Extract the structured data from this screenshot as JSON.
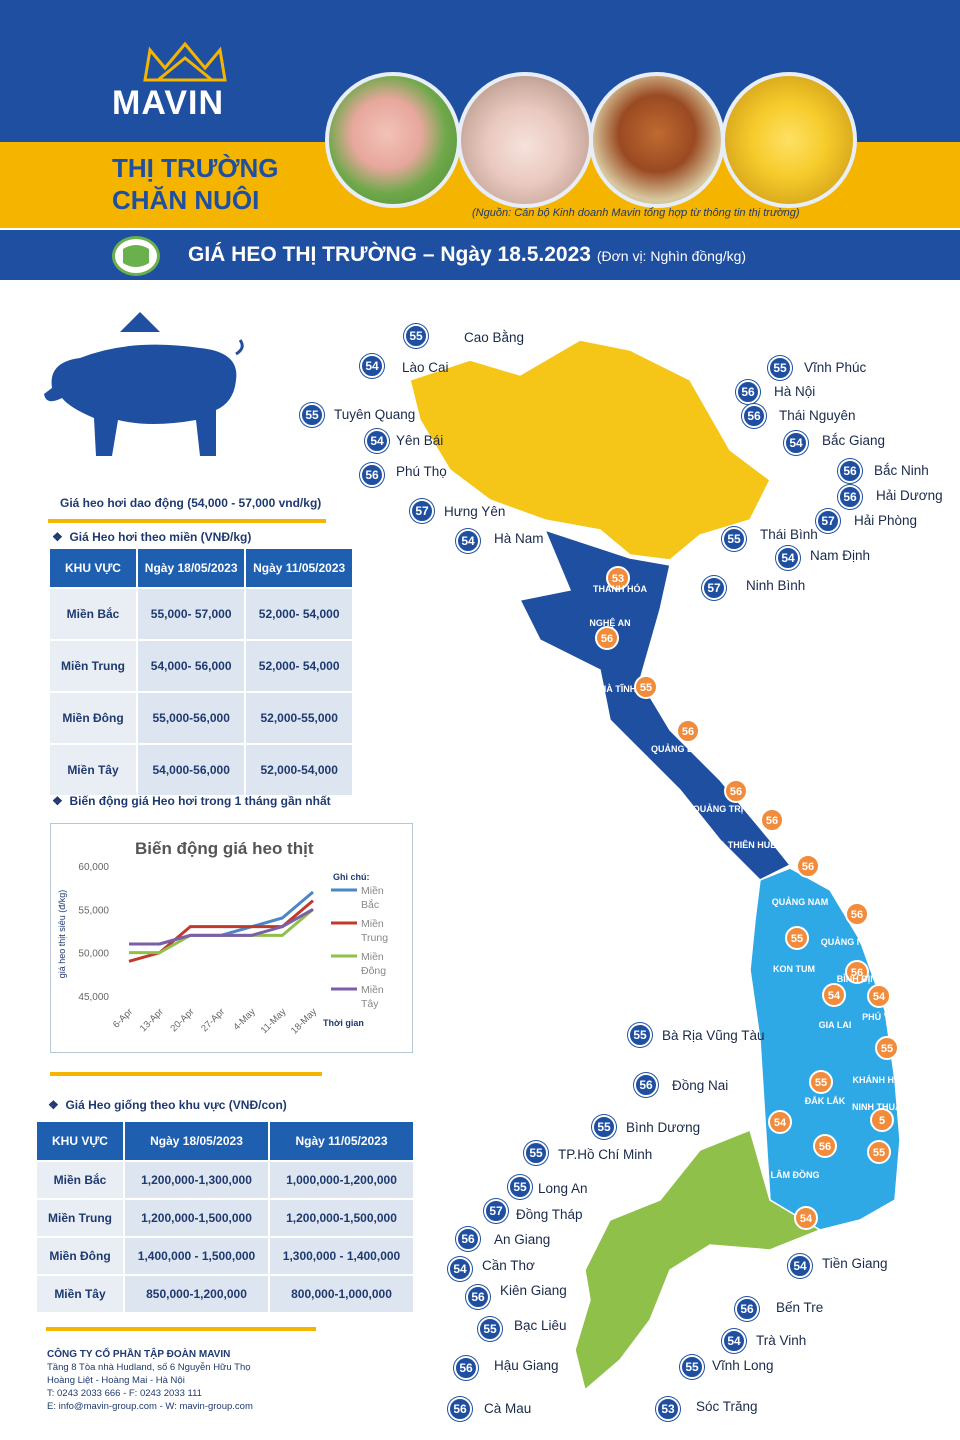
{
  "brand": {
    "name": "MAVIN",
    "subtitle_line1": "THỊ TRƯỜNG",
    "subtitle_line2": "CHĂN NUÔI"
  },
  "source_note": "(Nguồn: Cán bộ Kinh doanh Mavin tổng hợp từ thông tin thị trường)",
  "banner": {
    "title": "GIÁ HEO THỊ TRƯỜNG – Ngày 18.5.2023",
    "unit": "(Đơn vị: Nghìn đồng/kg)"
  },
  "price_range_note": "Giá heo hơi dao động (54,000 - 57,000 vnd/kg)",
  "section1": {
    "title": "Giá Heo hơi theo miền (VNĐ/kg)",
    "headers": [
      "KHU VỰC",
      "Ngày 18/05/2023",
      "Ngày 11/05/2023"
    ],
    "rows": [
      [
        "Miền Bắc",
        "55,000- 57,000",
        "52,000- 54,000"
      ],
      [
        "Miền Trung",
        "54,000- 56,000",
        "52,000- 54,000"
      ],
      [
        "Miền Đông",
        "55,000-56,000",
        "52,000-55,000"
      ],
      [
        "Miền Tây",
        "54,000-56,000",
        "52,000-54,000"
      ]
    ]
  },
  "section2": {
    "title": "Biến động giá Heo hơi trong 1 tháng gần nhất"
  },
  "chart_data": {
    "type": "line",
    "title": "Biến động giá heo thịt",
    "xlabel": "Thời gian",
    "ylabel": "giá heo thịt siêu (đ/kg)",
    "legend_title": "Ghi chú:",
    "categories": [
      "6-Apr",
      "13-Apr",
      "20-Apr",
      "27-Apr",
      "4-May",
      "11-May",
      "18-May"
    ],
    "ylim": [
      45000,
      60000
    ],
    "yticks": [
      "45,000",
      "50,000",
      "55,000",
      "60,000"
    ],
    "series": [
      {
        "name": "Miền Bắc",
        "color": "#4a86c8",
        "values": [
          51000,
          51000,
          52000,
          52000,
          53000,
          54000,
          57000
        ]
      },
      {
        "name": "Miền Trung",
        "color": "#c0392b",
        "values": [
          49000,
          50000,
          53000,
          53000,
          53000,
          53000,
          56000
        ]
      },
      {
        "name": "Miền Đông",
        "color": "#8ec04a",
        "values": [
          50000,
          50000,
          52000,
          52000,
          52000,
          52000,
          55000
        ]
      },
      {
        "name": "Miền Tây",
        "color": "#7b5ea7",
        "values": [
          51000,
          51000,
          52000,
          52000,
          52000,
          53000,
          55000
        ]
      }
    ]
  },
  "section3": {
    "title": "Giá Heo giống theo khu vực (VNĐ/con)",
    "headers": [
      "KHU VỰC",
      "Ngày 18/05/2023",
      "Ngày 11/05/2023"
    ],
    "rows": [
      [
        "Miền Bắc",
        "1,200,000-1,300,000",
        "1,000,000-1,200,000"
      ],
      [
        "Miền Trung",
        "1,200,000-1,500,000",
        "1,200,000-1,500,000"
      ],
      [
        "Miền Đông",
        "1,400,000 - 1,500,000",
        "1,300,000 - 1,400,000"
      ],
      [
        "Miền Tây",
        "850,000-1,200,000",
        "800,000-1,000,000"
      ]
    ]
  },
  "footer": {
    "company": "CÔNG TY CỔ PHẦN TẬP ĐOÀN MAVIN",
    "address1": "Tầng 8 Tòa nhà Hudland, số 6 Nguyễn Hữu Thọ",
    "address2": "Hoàng Liệt - Hoàng Mai - Hà Nội",
    "phone": "T: 0243 2033 666 - F: 0243 2033 111",
    "contact": "E: info@mavin-group.com - W: mavin-group.com"
  },
  "map_labels": [
    {
      "v": "55",
      "n": "Cao Bằng"
    },
    {
      "v": "54",
      "n": "Lào Cai"
    },
    {
      "v": "55",
      "n": "Vĩnh Phúc"
    },
    {
      "v": "56",
      "n": "Hà Nội"
    },
    {
      "v": "55",
      "n": "Tuyên Quang"
    },
    {
      "v": "56",
      "n": "Thái Nguyên"
    },
    {
      "v": "54",
      "n": "Yên Bái"
    },
    {
      "v": "54",
      "n": "Bắc Giang"
    },
    {
      "v": "56",
      "n": "Phú Thọ"
    },
    {
      "v": "56",
      "n": "Bắc Ninh"
    },
    {
      "v": "56",
      "n": "Hải Dương"
    },
    {
      "v": "57",
      "n": "Hưng Yên"
    },
    {
      "v": "57",
      "n": "Hải Phòng"
    },
    {
      "v": "54",
      "n": "Hà Nam"
    },
    {
      "v": "55",
      "n": "Thái Bình"
    },
    {
      "v": "54",
      "n": "Nam Định"
    },
    {
      "v": "57",
      "n": "Ninh Bình"
    },
    {
      "v": "55",
      "n": "Bà Rịa Vũng Tàu"
    },
    {
      "v": "56",
      "n": "Đồng Nai"
    },
    {
      "v": "55",
      "n": "Bình Dương"
    },
    {
      "v": "55",
      "n": "TP.Hồ Chí Minh"
    },
    {
      "v": "55",
      "n": "Long An"
    },
    {
      "v": "57",
      "n": "Đồng Tháp"
    },
    {
      "v": "56",
      "n": "An Giang"
    },
    {
      "v": "54",
      "n": "Tiền Giang"
    },
    {
      "v": "54",
      "n": "Cần Thơ"
    },
    {
      "v": "56",
      "n": "Kiên Giang"
    },
    {
      "v": "56",
      "n": "Bến Tre"
    },
    {
      "v": "55",
      "n": "Bạc Liêu"
    },
    {
      "v": "54",
      "n": "Trà Vinh"
    },
    {
      "v": "56",
      "n": "Hậu Giang"
    },
    {
      "v": "55",
      "n": "Vĩnh Long"
    },
    {
      "v": "56",
      "n": "Cà Mau"
    },
    {
      "v": "53",
      "n": "Sóc Trăng"
    }
  ],
  "map_regions": [
    "THANH HÓA",
    "NGHỆ AN",
    "HÀ TĨNH",
    "QUẢNG BÌNH",
    "QUẢNG TRỊ",
    "THỪA THIÊN HUẾ",
    "QUẢNG NAM",
    "QUẢNG NGÃI",
    "KON TUM",
    "BÌNH ĐỊNH",
    "GIA LAI",
    "PHÚ YÊN",
    "ĐẮK LẮK",
    "KHÁNH HÒA",
    "LÂM ĐỒNG",
    "NINH THUẬN"
  ],
  "map_central_values": [
    "53",
    "56",
    "55",
    "56",
    "56",
    "56",
    "56",
    "56",
    "55",
    "56",
    "54",
    "54",
    "55",
    "55",
    "5",
    "54",
    "55",
    "56",
    "54"
  ],
  "colors": {
    "primary": "#1f4fa0",
    "accent": "#f4b400",
    "north": "#f5c518",
    "central": "#1f4fa0",
    "highland": "#2fa8e6",
    "south": "#8ec04a",
    "badge_orange": "#f08c3c"
  }
}
